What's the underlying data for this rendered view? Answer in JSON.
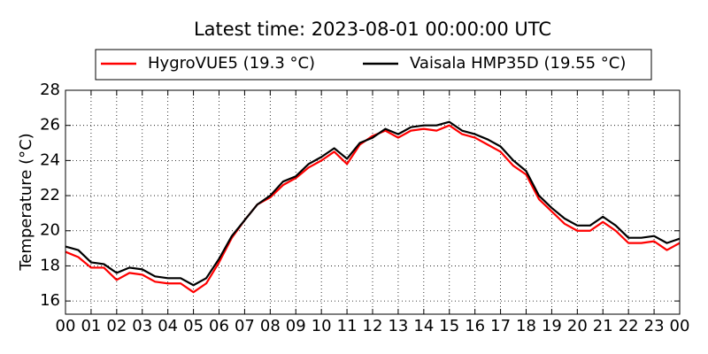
{
  "chart_data": {
    "type": "line",
    "title": "Latest time: 2023-08-01 00:00:00 UTC",
    "y_label": "Temperature (°C)",
    "x": [
      0,
      0.5,
      1,
      1.5,
      2,
      2.5,
      3,
      3.5,
      4,
      4.5,
      5,
      5.5,
      6,
      6.5,
      7,
      7.5,
      8,
      8.5,
      9,
      9.5,
      10,
      10.5,
      11,
      11.5,
      12,
      12.5,
      13,
      13.5,
      14,
      14.5,
      15,
      15.5,
      16,
      16.5,
      17,
      17.5,
      18,
      18.5,
      19,
      19.5,
      20,
      20.5,
      21,
      21.5,
      22,
      22.5,
      23,
      23.5,
      24
    ],
    "series": [
      {
        "name": "HygroVUE5 (19.3 °C)",
        "color": "#ff0000",
        "values": [
          18.8,
          18.5,
          17.9,
          17.9,
          17.2,
          17.6,
          17.5,
          17.1,
          17.0,
          17.0,
          16.5,
          17.0,
          18.2,
          19.6,
          20.6,
          21.5,
          21.9,
          22.6,
          23.0,
          23.6,
          24.0,
          24.5,
          23.8,
          24.9,
          25.4,
          25.7,
          25.3,
          25.7,
          25.8,
          25.7,
          26.0,
          25.5,
          25.3,
          24.9,
          24.5,
          23.7,
          23.2,
          21.8,
          21.1,
          20.4,
          20.0,
          20.0,
          20.5,
          20.0,
          19.3,
          19.3,
          19.4,
          18.9,
          19.3
        ]
      },
      {
        "name": "Vaisala HMP35D (19.55 °C)",
        "color": "#000000",
        "values": [
          19.1,
          18.9,
          18.2,
          18.1,
          17.6,
          17.9,
          17.8,
          17.4,
          17.3,
          17.3,
          16.9,
          17.3,
          18.4,
          19.7,
          20.6,
          21.5,
          22.0,
          22.8,
          23.1,
          23.8,
          24.2,
          24.7,
          24.1,
          25.0,
          25.3,
          25.8,
          25.5,
          25.9,
          26.0,
          26.0,
          26.2,
          25.7,
          25.5,
          25.2,
          24.8,
          24.0,
          23.4,
          22.0,
          21.3,
          20.7,
          20.3,
          20.3,
          20.8,
          20.3,
          19.6,
          19.6,
          19.7,
          19.3,
          19.55
        ]
      }
    ],
    "xlim": [
      0,
      24
    ],
    "xticks": [
      {
        "value": 0,
        "label": "00"
      },
      {
        "value": 1,
        "label": "01"
      },
      {
        "value": 2,
        "label": "02"
      },
      {
        "value": 3,
        "label": "03"
      },
      {
        "value": 4,
        "label": "04"
      },
      {
        "value": 5,
        "label": "05"
      },
      {
        "value": 6,
        "label": "06"
      },
      {
        "value": 7,
        "label": "07"
      },
      {
        "value": 8,
        "label": "08"
      },
      {
        "value": 9,
        "label": "09"
      },
      {
        "value": 10,
        "label": "10"
      },
      {
        "value": 11,
        "label": "11"
      },
      {
        "value": 12,
        "label": "12"
      },
      {
        "value": 13,
        "label": "13"
      },
      {
        "value": 14,
        "label": "14"
      },
      {
        "value": 15,
        "label": "15"
      },
      {
        "value": 16,
        "label": "16"
      },
      {
        "value": 17,
        "label": "17"
      },
      {
        "value": 18,
        "label": "18"
      },
      {
        "value": 19,
        "label": "19"
      },
      {
        "value": 20,
        "label": "20"
      },
      {
        "value": 21,
        "label": "21"
      },
      {
        "value": 22,
        "label": "22"
      },
      {
        "value": 23,
        "label": "23"
      },
      {
        "value": 24,
        "label": "00"
      }
    ],
    "ylim": [
      15.25,
      28
    ],
    "yticks": [
      16,
      18,
      20,
      22,
      24,
      26,
      28
    ],
    "grid": true,
    "legend": "top"
  }
}
